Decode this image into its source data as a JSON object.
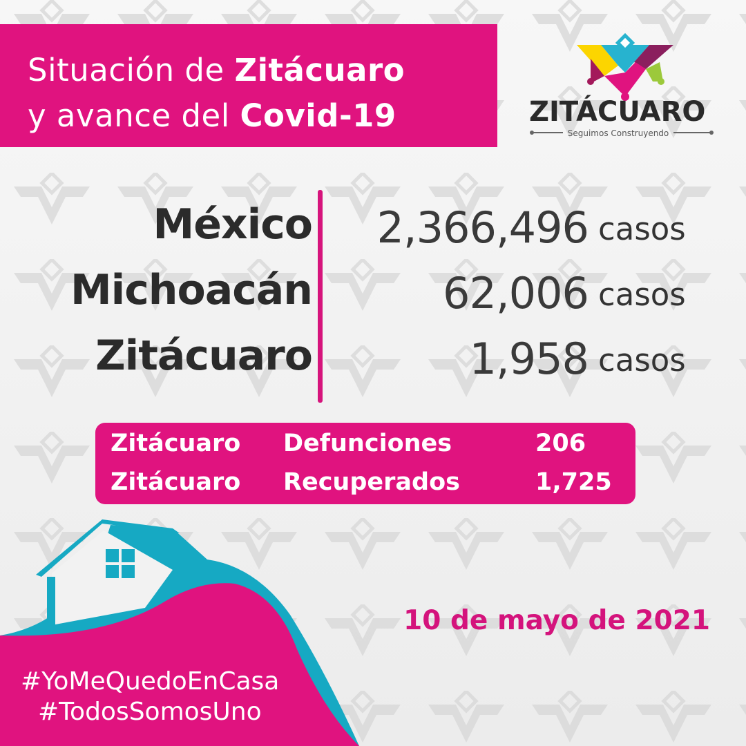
{
  "header": {
    "line1_prefix": "Situación de ",
    "line1_bold": "Zitácuaro",
    "line2_prefix": "y avance del ",
    "line2_bold": "Covid-19"
  },
  "logo": {
    "name": "ZITÁCUARO",
    "slogan": "Seguimos Construyendo"
  },
  "stats": [
    {
      "place": "México",
      "cases": "2,366,496",
      "unit": "casos"
    },
    {
      "place": "Michoacán",
      "cases": "62,006",
      "unit": "casos"
    },
    {
      "place": "Zitácuaro",
      "cases": "1,958",
      "unit": "casos"
    }
  ],
  "local": [
    {
      "place": "Zitácuaro",
      "label": "Defunciones",
      "value": "206"
    },
    {
      "place": "Zitácuaro",
      "label": "Recuperados",
      "value": "1,725"
    }
  ],
  "date": "10 de mayo de 2021",
  "hashtags": [
    "#YoMeQuedoEnCasa",
    "#TodosSomosUno"
  ],
  "colors": {
    "magenta": "#e0137f",
    "teal": "#16a9c3",
    "text": "#2b2b2b"
  }
}
